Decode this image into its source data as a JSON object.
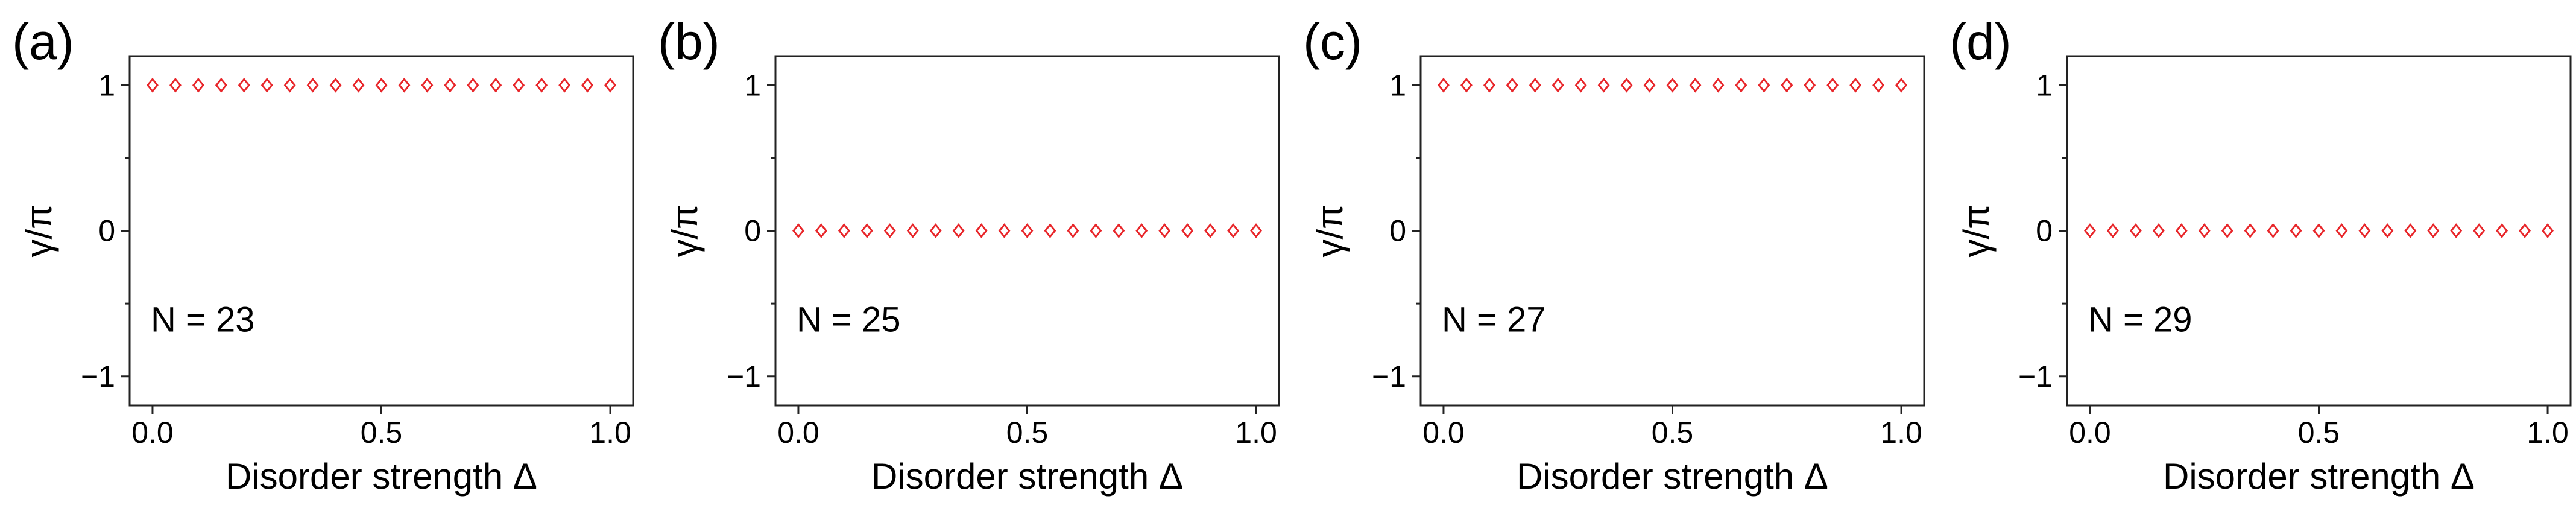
{
  "chart_data": [
    {
      "type": "scatter",
      "panel_label": "(a)",
      "annotation": "N = 23",
      "xlabel": "Disorder strength Δ",
      "ylabel": "γ/π",
      "xlim": [
        -0.05,
        1.05
      ],
      "ylim": [
        -1.2,
        1.2
      ],
      "xticks": [
        0.0,
        0.5,
        1.0
      ],
      "xtick_labels": [
        "0.0",
        "0.5",
        "1.0"
      ],
      "yticks": [
        -1,
        0,
        1
      ],
      "ytick_labels": [
        "−1",
        "0",
        "1"
      ],
      "minor_yticks": [
        -0.5,
        0.5
      ],
      "marker": "diamond-open",
      "marker_color": "#e8262a",
      "x": [
        0.0,
        0.05,
        0.1,
        0.15,
        0.2,
        0.25,
        0.3,
        0.35,
        0.4,
        0.45,
        0.5,
        0.55,
        0.6,
        0.65,
        0.7,
        0.75,
        0.8,
        0.85,
        0.9,
        0.95,
        1.0
      ],
      "y": [
        1,
        1,
        1,
        1,
        1,
        1,
        1,
        1,
        1,
        1,
        1,
        1,
        1,
        1,
        1,
        1,
        1,
        1,
        1,
        1,
        1
      ]
    },
    {
      "type": "scatter",
      "panel_label": "(b)",
      "annotation": "N = 25",
      "xlabel": "Disorder strength Δ",
      "ylabel": "γ/π",
      "xlim": [
        -0.05,
        1.05
      ],
      "ylim": [
        -1.2,
        1.2
      ],
      "xticks": [
        0.0,
        0.5,
        1.0
      ],
      "xtick_labels": [
        "0.0",
        "0.5",
        "1.0"
      ],
      "yticks": [
        -1,
        0,
        1
      ],
      "ytick_labels": [
        "−1",
        "0",
        "1"
      ],
      "minor_yticks": [
        -0.5,
        0.5
      ],
      "marker": "diamond-open",
      "marker_color": "#e8262a",
      "x": [
        0.0,
        0.05,
        0.1,
        0.15,
        0.2,
        0.25,
        0.3,
        0.35,
        0.4,
        0.45,
        0.5,
        0.55,
        0.6,
        0.65,
        0.7,
        0.75,
        0.8,
        0.85,
        0.9,
        0.95,
        1.0
      ],
      "y": [
        0,
        0,
        0,
        0,
        0,
        0,
        0,
        0,
        0,
        0,
        0,
        0,
        0,
        0,
        0,
        0,
        0,
        0,
        0,
        0,
        0
      ]
    },
    {
      "type": "scatter",
      "panel_label": "(c)",
      "annotation": "N = 27",
      "xlabel": "Disorder strength Δ",
      "ylabel": "γ/π",
      "xlim": [
        -0.05,
        1.05
      ],
      "ylim": [
        -1.2,
        1.2
      ],
      "xticks": [
        0.0,
        0.5,
        1.0
      ],
      "xtick_labels": [
        "0.0",
        "0.5",
        "1.0"
      ],
      "yticks": [
        -1,
        0,
        1
      ],
      "ytick_labels": [
        "−1",
        "0",
        "1"
      ],
      "minor_yticks": [
        -0.5,
        0.5
      ],
      "marker": "diamond-open",
      "marker_color": "#e8262a",
      "x": [
        0.0,
        0.05,
        0.1,
        0.15,
        0.2,
        0.25,
        0.3,
        0.35,
        0.4,
        0.45,
        0.5,
        0.55,
        0.6,
        0.65,
        0.7,
        0.75,
        0.8,
        0.85,
        0.9,
        0.95,
        1.0
      ],
      "y": [
        1,
        1,
        1,
        1,
        1,
        1,
        1,
        1,
        1,
        1,
        1,
        1,
        1,
        1,
        1,
        1,
        1,
        1,
        1,
        1,
        1
      ]
    },
    {
      "type": "scatter",
      "panel_label": "(d)",
      "annotation": "N = 29",
      "xlabel": "Disorder strength Δ",
      "ylabel": "γ/π",
      "xlim": [
        -0.05,
        1.05
      ],
      "ylim": [
        -1.2,
        1.2
      ],
      "xticks": [
        0.0,
        0.5,
        1.0
      ],
      "xtick_labels": [
        "0.0",
        "0.5",
        "1.0"
      ],
      "yticks": [
        -1,
        0,
        1
      ],
      "ytick_labels": [
        "−1",
        "0",
        "1"
      ],
      "minor_yticks": [
        -0.5,
        0.5
      ],
      "marker": "diamond-open",
      "marker_color": "#e8262a",
      "x": [
        0.0,
        0.05,
        0.1,
        0.15,
        0.2,
        0.25,
        0.3,
        0.35,
        0.4,
        0.45,
        0.5,
        0.55,
        0.6,
        0.65,
        0.7,
        0.75,
        0.8,
        0.85,
        0.9,
        0.95,
        1.0
      ],
      "y": [
        0,
        0,
        0,
        0,
        0,
        0,
        0,
        0,
        0,
        0,
        0,
        0,
        0,
        0,
        0,
        0,
        0,
        0,
        0,
        0,
        0
      ]
    }
  ]
}
